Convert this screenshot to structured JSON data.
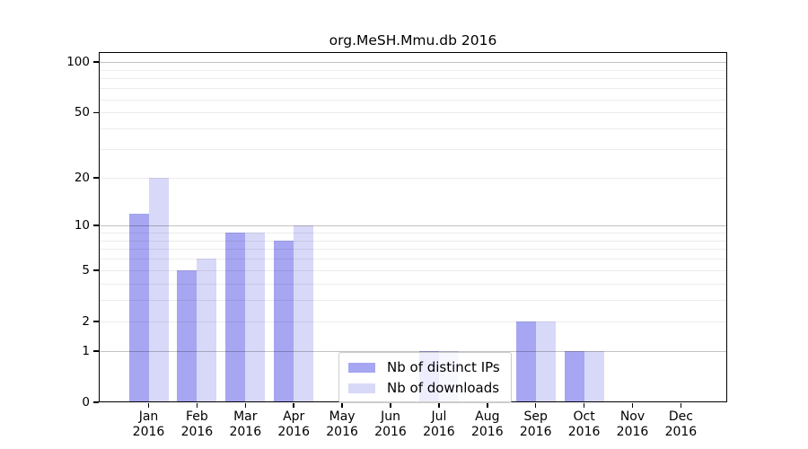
{
  "chart_data": {
    "type": "bar",
    "title": "org.MeSH.Mmu.db 2016",
    "year": "2016",
    "categories": [
      "Jan",
      "Feb",
      "Mar",
      "Apr",
      "May",
      "Jun",
      "Jul",
      "Aug",
      "Sep",
      "Oct",
      "Nov",
      "Dec"
    ],
    "series": [
      {
        "name": "Nb of distinct IPs",
        "color": "#a6a6f2",
        "values": [
          12,
          5,
          9,
          8,
          0,
          0,
          1,
          0,
          2,
          1,
          0,
          0
        ]
      },
      {
        "name": "Nb of downloads",
        "color": "#d8d8f8",
        "values": [
          20,
          6,
          9,
          10,
          0,
          0,
          1,
          0,
          2,
          1,
          0,
          0
        ]
      }
    ],
    "xlabel": "",
    "ylabel": "",
    "yscale": "log1p",
    "ylim": [
      0,
      116
    ],
    "yticks": [
      100,
      50,
      20,
      10,
      5,
      2,
      1,
      0
    ],
    "ytick_labels": [
      "100",
      "50",
      "20",
      "10",
      "5",
      "2",
      "1",
      "0"
    ],
    "minor_gridline_values": [
      2,
      3,
      4,
      5,
      6,
      7,
      8,
      9,
      20,
      30,
      40,
      50,
      60,
      70,
      80,
      90
    ],
    "major_gridline_values": [
      1,
      10,
      100
    ],
    "grid": true,
    "legend_position": "bottom-center"
  }
}
